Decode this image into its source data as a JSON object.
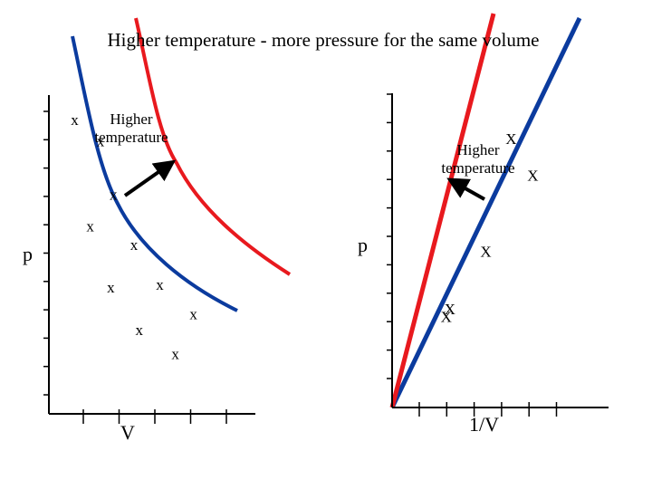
{
  "colors": {
    "higher_temperature": "#e8191e",
    "lower_temperature": "#0b3b9e",
    "axis": "#000000",
    "arrow": "#000000"
  },
  "chart_data": [
    {
      "type": "line",
      "title": "Higher temperature - more pressure for the same volume",
      "xlabel": "V",
      "ylabel": "p",
      "xlim": [
        0,
        8
      ],
      "ylim": [
        0,
        12
      ],
      "grid": false,
      "annotation": "Higher temperature",
      "marker_label": "x",
      "series": [
        {
          "color": "#0b3b9e",
          "x": [
            1.0,
            1.6,
            2.4,
            3.5,
            4.9
          ],
          "y": [
            11.0,
            7.0,
            4.7,
            3.1,
            2.2
          ],
          "marker_label": "x"
        },
        {
          "color": "#e8191e",
          "x": [
            2.0,
            2.5,
            3.3,
            4.3,
            5.6
          ],
          "y": [
            10.2,
            8.2,
            6.3,
            4.8,
            3.7
          ],
          "marker_label": "x"
        }
      ]
    },
    {
      "type": "line",
      "title": "",
      "xlabel": "1/V",
      "ylabel": "p",
      "xlim": [
        0,
        6
      ],
      "ylim": [
        0,
        12
      ],
      "grid": false,
      "annotation": "Higher temperature",
      "marker_label": "X",
      "series": [
        {
          "color": "#0b3b9e",
          "x": [
            1.6,
            2.6,
            3.9
          ],
          "y": [
            3.7,
            5.9,
            8.8
          ],
          "marker_label": "X"
        },
        {
          "color": "#e8191e",
          "x": [
            1.5,
            3.3
          ],
          "y": [
            3.4,
            10.2
          ],
          "marker_label": "X"
        }
      ]
    }
  ]
}
